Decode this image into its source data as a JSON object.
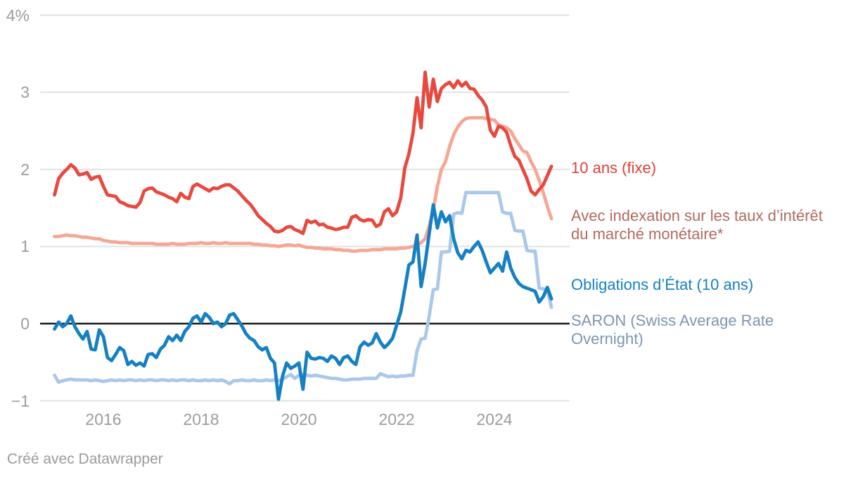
{
  "footer": {
    "text": "Créé avec Datawrapper"
  },
  "chart_data": {
    "type": "line",
    "title": "",
    "x_start": "2015-01",
    "x_end": "2025-03",
    "frequency": "monthly",
    "grid": "horizontal",
    "legend_position": "right-of-lines",
    "x_axis": {
      "ticks": [
        "2016",
        "2018",
        "2020",
        "2022",
        "2024"
      ]
    },
    "y_axis": {
      "min": -1,
      "max": 4,
      "ticks": [
        {
          "value": 4,
          "label": "4%"
        },
        {
          "value": 3,
          "label": "3"
        },
        {
          "value": 2,
          "label": "2"
        },
        {
          "value": 1,
          "label": "1"
        },
        {
          "value": 0,
          "label": "0"
        },
        {
          "value": -1,
          "label": "−1"
        }
      ]
    },
    "colors": {
      "grid": "#e2e2e2",
      "zero_line": "#1a1a1a",
      "tick_text": "#9c9c9c"
    },
    "series": [
      {
        "name": "10 ans (fixe)",
        "label_lines": [
          "10 ans (fixe)"
        ],
        "color": "#e7493f",
        "label_color": "#dc4037",
        "values": [
          1.67,
          1.88,
          1.95,
          2.0,
          2.06,
          2.02,
          1.93,
          1.94,
          1.96,
          1.87,
          1.9,
          1.91,
          1.78,
          1.67,
          1.66,
          1.65,
          1.58,
          1.56,
          1.53,
          1.52,
          1.51,
          1.57,
          1.72,
          1.75,
          1.76,
          1.71,
          1.69,
          1.67,
          1.64,
          1.62,
          1.58,
          1.69,
          1.64,
          1.62,
          1.78,
          1.81,
          1.78,
          1.75,
          1.72,
          1.76,
          1.75,
          1.78,
          1.8,
          1.8,
          1.76,
          1.72,
          1.66,
          1.6,
          1.55,
          1.48,
          1.4,
          1.35,
          1.3,
          1.26,
          1.2,
          1.19,
          1.21,
          1.25,
          1.26,
          1.22,
          1.2,
          1.17,
          1.34,
          1.31,
          1.33,
          1.28,
          1.29,
          1.25,
          1.24,
          1.22,
          1.23,
          1.25,
          1.25,
          1.38,
          1.4,
          1.35,
          1.33,
          1.35,
          1.34,
          1.26,
          1.29,
          1.45,
          1.49,
          1.4,
          1.45,
          1.63,
          2.02,
          2.2,
          2.47,
          2.93,
          2.54,
          3.26,
          2.81,
          3.17,
          2.88,
          3.05,
          3.1,
          3.13,
          3.06,
          3.15,
          3.08,
          3.13,
          3.05,
          3.04,
          2.96,
          2.9,
          2.81,
          2.51,
          2.43,
          2.56,
          2.54,
          2.48,
          2.31,
          2.17,
          2.12,
          2.0,
          1.88,
          1.72,
          1.67,
          1.74,
          1.8,
          1.92,
          2.04
        ]
      },
      {
        "name": "Avec indexation sur les taux d’intérêt du marché monétaire*",
        "label_lines": [
          "Avec indexation sur les taux d’intérêt",
          "du marché monétaire*"
        ],
        "color": "#f5a794",
        "label_color": "#b16a5c",
        "values": [
          1.13,
          1.13,
          1.14,
          1.15,
          1.14,
          1.14,
          1.13,
          1.12,
          1.12,
          1.11,
          1.1,
          1.1,
          1.08,
          1.07,
          1.06,
          1.06,
          1.05,
          1.05,
          1.05,
          1.04,
          1.04,
          1.04,
          1.04,
          1.04,
          1.04,
          1.03,
          1.03,
          1.03,
          1.03,
          1.04,
          1.03,
          1.03,
          1.03,
          1.04,
          1.04,
          1.04,
          1.05,
          1.04,
          1.04,
          1.05,
          1.04,
          1.04,
          1.05,
          1.04,
          1.04,
          1.04,
          1.04,
          1.04,
          1.04,
          1.03,
          1.03,
          1.02,
          1.02,
          1.01,
          1.01,
          1.0,
          1.01,
          1.02,
          1.02,
          1.01,
          1.02,
          1.0,
          0.99,
          0.99,
          0.98,
          0.98,
          0.97,
          0.97,
          0.97,
          0.96,
          0.96,
          0.95,
          0.95,
          0.94,
          0.94,
          0.95,
          0.95,
          0.95,
          0.96,
          0.96,
          0.96,
          0.97,
          0.97,
          0.97,
          0.97,
          0.98,
          0.98,
          0.99,
          1.0,
          1.02,
          1.05,
          1.1,
          1.26,
          1.48,
          1.78,
          2.0,
          2.1,
          2.3,
          2.45,
          2.55,
          2.62,
          2.66,
          2.67,
          2.67,
          2.67,
          2.67,
          2.66,
          2.65,
          2.64,
          2.58,
          2.56,
          2.54,
          2.5,
          2.4,
          2.32,
          2.24,
          2.22,
          2.1,
          2.0,
          1.86,
          1.7,
          1.52,
          1.36
        ]
      },
      {
        "name": "Obligations d’État (10 ans)",
        "label_lines": [
          "Obligations d’État (10 ans)"
        ],
        "color": "#1580c2",
        "label_color": "#1580c2",
        "values": [
          -0.07,
          0.02,
          -0.04,
          0.0,
          0.1,
          -0.04,
          -0.13,
          -0.2,
          -0.1,
          -0.33,
          -0.34,
          -0.08,
          -0.17,
          -0.44,
          -0.48,
          -0.4,
          -0.31,
          -0.35,
          -0.53,
          -0.49,
          -0.54,
          -0.51,
          -0.55,
          -0.4,
          -0.39,
          -0.44,
          -0.33,
          -0.28,
          -0.17,
          -0.22,
          -0.15,
          -0.22,
          -0.1,
          -0.04,
          0.07,
          0.1,
          0.02,
          0.13,
          0.08,
          0.0,
          0.02,
          -0.04,
          0.0,
          0.11,
          0.13,
          0.05,
          -0.03,
          -0.13,
          -0.19,
          -0.22,
          -0.3,
          -0.34,
          -0.31,
          -0.45,
          -0.51,
          -0.98,
          -0.68,
          -0.51,
          -0.58,
          -0.55,
          -0.51,
          -0.85,
          -0.37,
          -0.45,
          -0.46,
          -0.44,
          -0.45,
          -0.49,
          -0.42,
          -0.45,
          -0.53,
          -0.44,
          -0.42,
          -0.49,
          -0.53,
          -0.3,
          -0.24,
          -0.28,
          -0.25,
          -0.13,
          -0.24,
          -0.31,
          -0.26,
          -0.19,
          -0.02,
          0.15,
          0.45,
          0.76,
          0.8,
          1.15,
          0.48,
          0.78,
          1.17,
          1.54,
          1.24,
          1.45,
          1.32,
          1.4,
          1.1,
          0.92,
          0.84,
          0.95,
          0.93,
          1.0,
          1.06,
          0.95,
          0.8,
          0.66,
          0.72,
          0.78,
          0.68,
          0.93,
          0.72,
          0.6,
          0.52,
          0.48,
          0.46,
          0.44,
          0.42,
          0.28,
          0.35,
          0.47,
          0.32
        ]
      },
      {
        "name": "SARON (Swiss Average Rate Overnight)",
        "label_lines": [
          "SARON (Swiss Average Rate",
          "Overnight)"
        ],
        "color": "#aac8e9",
        "label_color": "#7e95af",
        "values": [
          -0.67,
          -0.76,
          -0.74,
          -0.73,
          -0.72,
          -0.73,
          -0.73,
          -0.73,
          -0.73,
          -0.74,
          -0.73,
          -0.74,
          -0.75,
          -0.74,
          -0.73,
          -0.74,
          -0.73,
          -0.74,
          -0.73,
          -0.73,
          -0.74,
          -0.73,
          -0.74,
          -0.73,
          -0.73,
          -0.74,
          -0.73,
          -0.73,
          -0.74,
          -0.73,
          -0.74,
          -0.73,
          -0.73,
          -0.74,
          -0.73,
          -0.74,
          -0.74,
          -0.73,
          -0.74,
          -0.73,
          -0.74,
          -0.73,
          -0.75,
          -0.78,
          -0.74,
          -0.74,
          -0.73,
          -0.74,
          -0.74,
          -0.73,
          -0.74,
          -0.74,
          -0.73,
          -0.74,
          -0.73,
          -0.74,
          -0.72,
          -0.69,
          -0.66,
          -0.71,
          -0.67,
          -0.66,
          -0.67,
          -0.68,
          -0.67,
          -0.68,
          -0.69,
          -0.7,
          -0.71,
          -0.71,
          -0.72,
          -0.73,
          -0.73,
          -0.72,
          -0.72,
          -0.72,
          -0.71,
          -0.71,
          -0.71,
          -0.71,
          -0.65,
          -0.67,
          -0.69,
          -0.68,
          -0.69,
          -0.68,
          -0.68,
          -0.67,
          -0.67,
          -0.35,
          -0.2,
          -0.19,
          0.1,
          0.44,
          0.45,
          0.93,
          0.93,
          0.94,
          1.42,
          1.44,
          1.43,
          1.7,
          1.7,
          1.7,
          1.7,
          1.7,
          1.7,
          1.7,
          1.7,
          1.7,
          1.45,
          1.43,
          1.43,
          1.21,
          1.2,
          1.2,
          0.95,
          0.94,
          0.94,
          0.46,
          0.45,
          0.44,
          0.21
        ]
      }
    ]
  }
}
